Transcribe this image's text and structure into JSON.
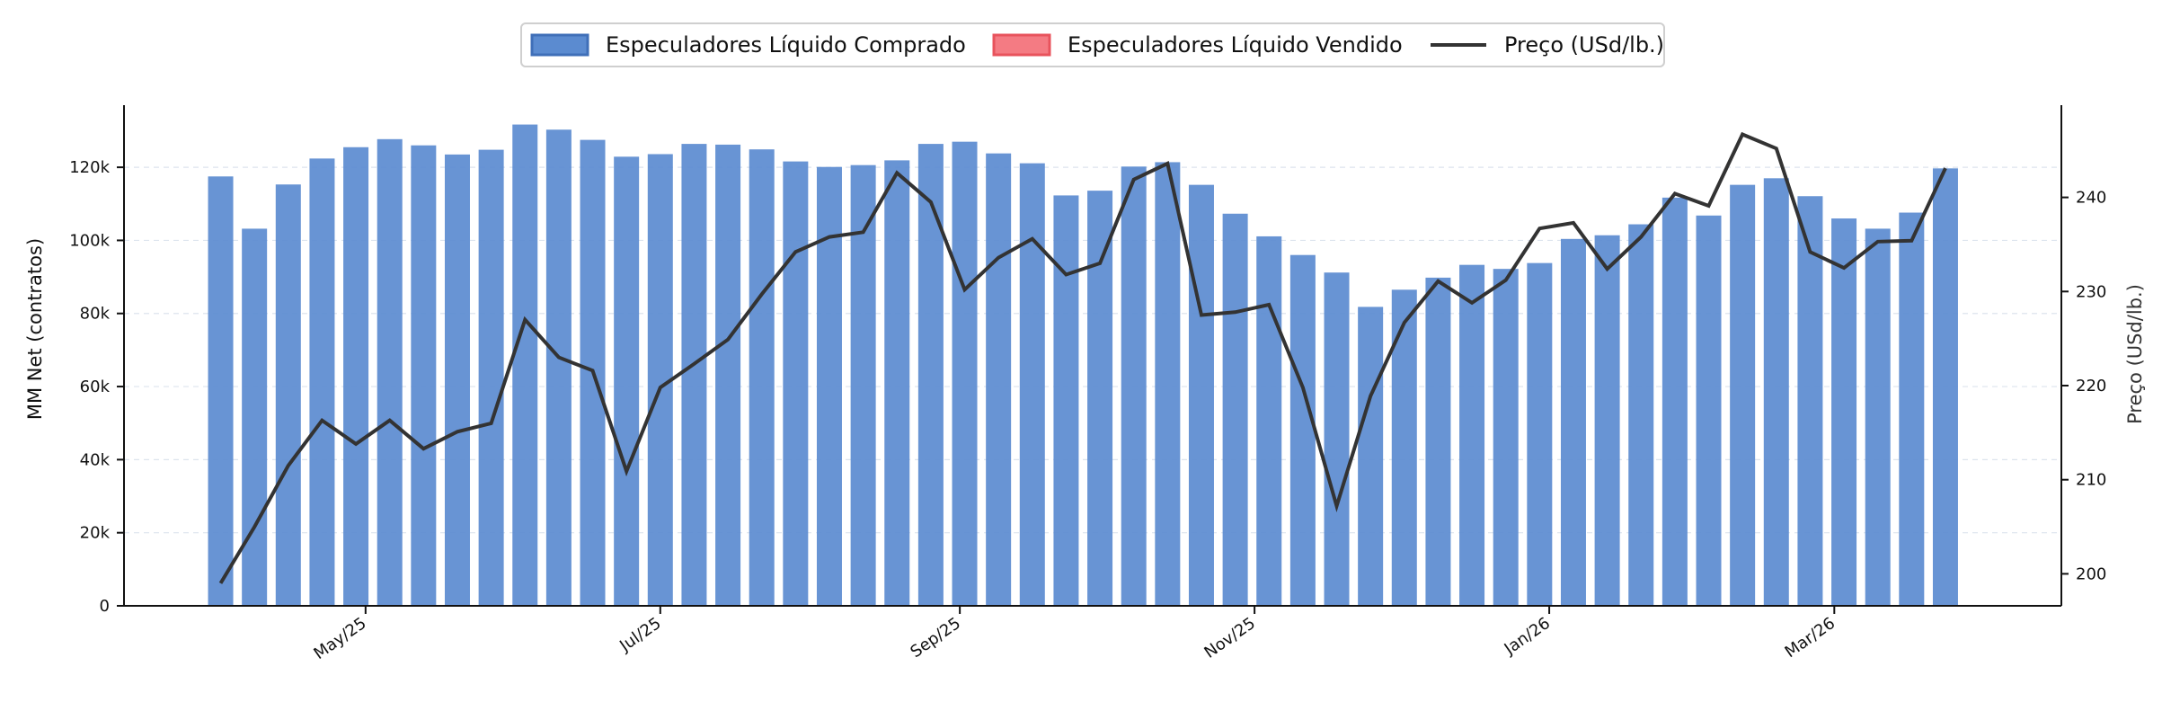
{
  "chart_data": {
    "type": "bar",
    "legend": {
      "placement": "top-center",
      "entries": [
        {
          "label": "Especuladores Líquido Comprado",
          "kind": "patch",
          "color": "#5b8bd0",
          "edge": "#3f6fb8"
        },
        {
          "label": "Especuladores Líquido Vendido",
          "kind": "patch",
          "color": "#f47b83",
          "edge": "#e8535c"
        },
        {
          "label": "Preço (USd/lb.)",
          "kind": "line",
          "color": "#333333"
        }
      ]
    },
    "ylabel_left": "MM Net (contratos)",
    "ylabel_right": "Preço (USd/lb.)",
    "y_left": {
      "min": 0,
      "max": 137000,
      "ticks": [
        0,
        20000,
        40000,
        60000,
        80000,
        100000,
        120000
      ],
      "tick_labels": [
        "0",
        "20k",
        "40k",
        "60k",
        "80k",
        "100k",
        "120k"
      ]
    },
    "y_right": {
      "min": 196.6,
      "max": 249.8,
      "ticks": [
        200,
        210,
        220,
        230,
        240
      ],
      "tick_labels": [
        "200",
        "210",
        "220",
        "230",
        "240"
      ]
    },
    "x_ticks": [
      {
        "label": "May/25",
        "date": "2025-05-01"
      },
      {
        "label": "Jul/25",
        "date": "2025-07-01"
      },
      {
        "label": "Sep/25",
        "date": "2025-09-01"
      },
      {
        "label": "Nov/25",
        "date": "2025-11-01"
      },
      {
        "label": "Jan/26",
        "date": "2026-01-01"
      },
      {
        "label": "Mar/26",
        "date": "2026-03-01"
      }
    ],
    "x_range": [
      "2025-03-12",
      "2026-04-17"
    ],
    "grid": "horizontal, light dashed",
    "colors": {
      "long": "#5b8bd0",
      "short": "#f47b83",
      "price": "#333333"
    },
    "series": [
      {
        "name": "Especuladores Líquido Comprado",
        "type": "bar",
        "dates": [
          "2025-04-01",
          "2025-04-08",
          "2025-04-15",
          "2025-04-22",
          "2025-04-29",
          "2025-05-06",
          "2025-05-13",
          "2025-05-20",
          "2025-05-27",
          "2025-06-03",
          "2025-06-10",
          "2025-06-17",
          "2025-06-24",
          "2025-07-01",
          "2025-07-08",
          "2025-07-15",
          "2025-07-22",
          "2025-07-29",
          "2025-08-05",
          "2025-08-12",
          "2025-08-19",
          "2025-08-26",
          "2025-09-02",
          "2025-09-09",
          "2025-09-16",
          "2025-09-23",
          "2025-09-30",
          "2025-10-07",
          "2025-10-14",
          "2025-10-21",
          "2025-10-28",
          "2025-11-04",
          "2025-11-11",
          "2025-11-18",
          "2025-11-25",
          "2025-12-02",
          "2025-12-09",
          "2025-12-16",
          "2025-12-23",
          "2025-12-30",
          "2026-01-06",
          "2026-01-13",
          "2026-01-20",
          "2026-01-27",
          "2026-02-03",
          "2026-02-10",
          "2026-02-17",
          "2026-02-24",
          "2026-03-03",
          "2026-03-10",
          "2026-03-17",
          "2026-03-24",
          "2026-03-31",
          "2026-04-07"
        ],
        "values": [
          117500,
          103200,
          115300,
          122400,
          125500,
          127700,
          126000,
          123500,
          124800,
          131700,
          130300,
          127500,
          122900,
          123600,
          126400,
          126200,
          124900,
          121600,
          120100,
          120600,
          121900,
          126400,
          127000,
          123800,
          121100,
          112300,
          113600,
          120200,
          121400,
          115200,
          107300,
          101100,
          96000,
          91200,
          81800,
          86500,
          89800,
          93300,
          92200,
          93800,
          100400,
          101400,
          104400,
          111700,
          106800,
          115200,
          117000,
          112100,
          106000,
          103200,
          107600,
          119700,
          0,
          0
        ]
      },
      {
        "name": "Especuladores Líquido Vendido",
        "type": "bar",
        "dates": [],
        "values": []
      },
      {
        "name": "Preço (USd/lb.)",
        "type": "line",
        "dates": [
          "2025-04-01",
          "2025-04-08",
          "2025-04-15",
          "2025-04-22",
          "2025-04-29",
          "2025-05-06",
          "2025-05-13",
          "2025-05-20",
          "2025-05-27",
          "2025-06-03",
          "2025-06-10",
          "2025-06-17",
          "2025-06-24",
          "2025-07-01",
          "2025-07-08",
          "2025-07-15",
          "2025-07-22",
          "2025-07-29",
          "2025-08-05",
          "2025-08-12",
          "2025-08-19",
          "2025-08-26",
          "2025-09-02",
          "2025-09-09",
          "2025-09-16",
          "2025-09-23",
          "2025-09-30",
          "2025-10-07",
          "2025-10-14",
          "2025-10-21",
          "2025-10-28",
          "2025-11-04",
          "2025-11-11",
          "2025-11-18",
          "2025-11-25",
          "2025-12-02",
          "2025-12-09",
          "2025-12-16",
          "2025-12-23",
          "2025-12-30",
          "2026-01-06",
          "2026-01-13",
          "2026-01-20",
          "2026-01-27",
          "2026-02-03",
          "2026-02-10",
          "2026-02-17",
          "2026-02-24",
          "2026-03-03",
          "2026-03-10",
          "2026-03-17",
          "2026-03-24",
          "2026-03-31",
          "2026-04-07"
        ],
        "values": [
          199.0,
          205.0,
          211.5,
          216.3,
          213.8,
          216.3,
          213.3,
          215.1,
          216.0,
          227.0,
          223.0,
          221.6,
          210.9,
          219.8,
          222.3,
          224.9,
          229.7,
          234.2,
          235.8,
          236.3,
          242.6,
          239.5,
          230.2,
          233.6,
          235.6,
          231.8,
          233.0,
          241.9,
          243.6,
          227.5,
          227.8,
          228.6,
          219.8,
          207.2,
          218.9,
          226.7,
          231.1,
          228.8,
          231.2,
          236.7,
          237.3,
          232.4,
          235.8,
          240.4,
          239.1,
          246.7,
          245.2,
          234.2,
          232.5,
          235.3,
          235.4,
          243.1,
          null,
          null
        ]
      }
    ]
  }
}
